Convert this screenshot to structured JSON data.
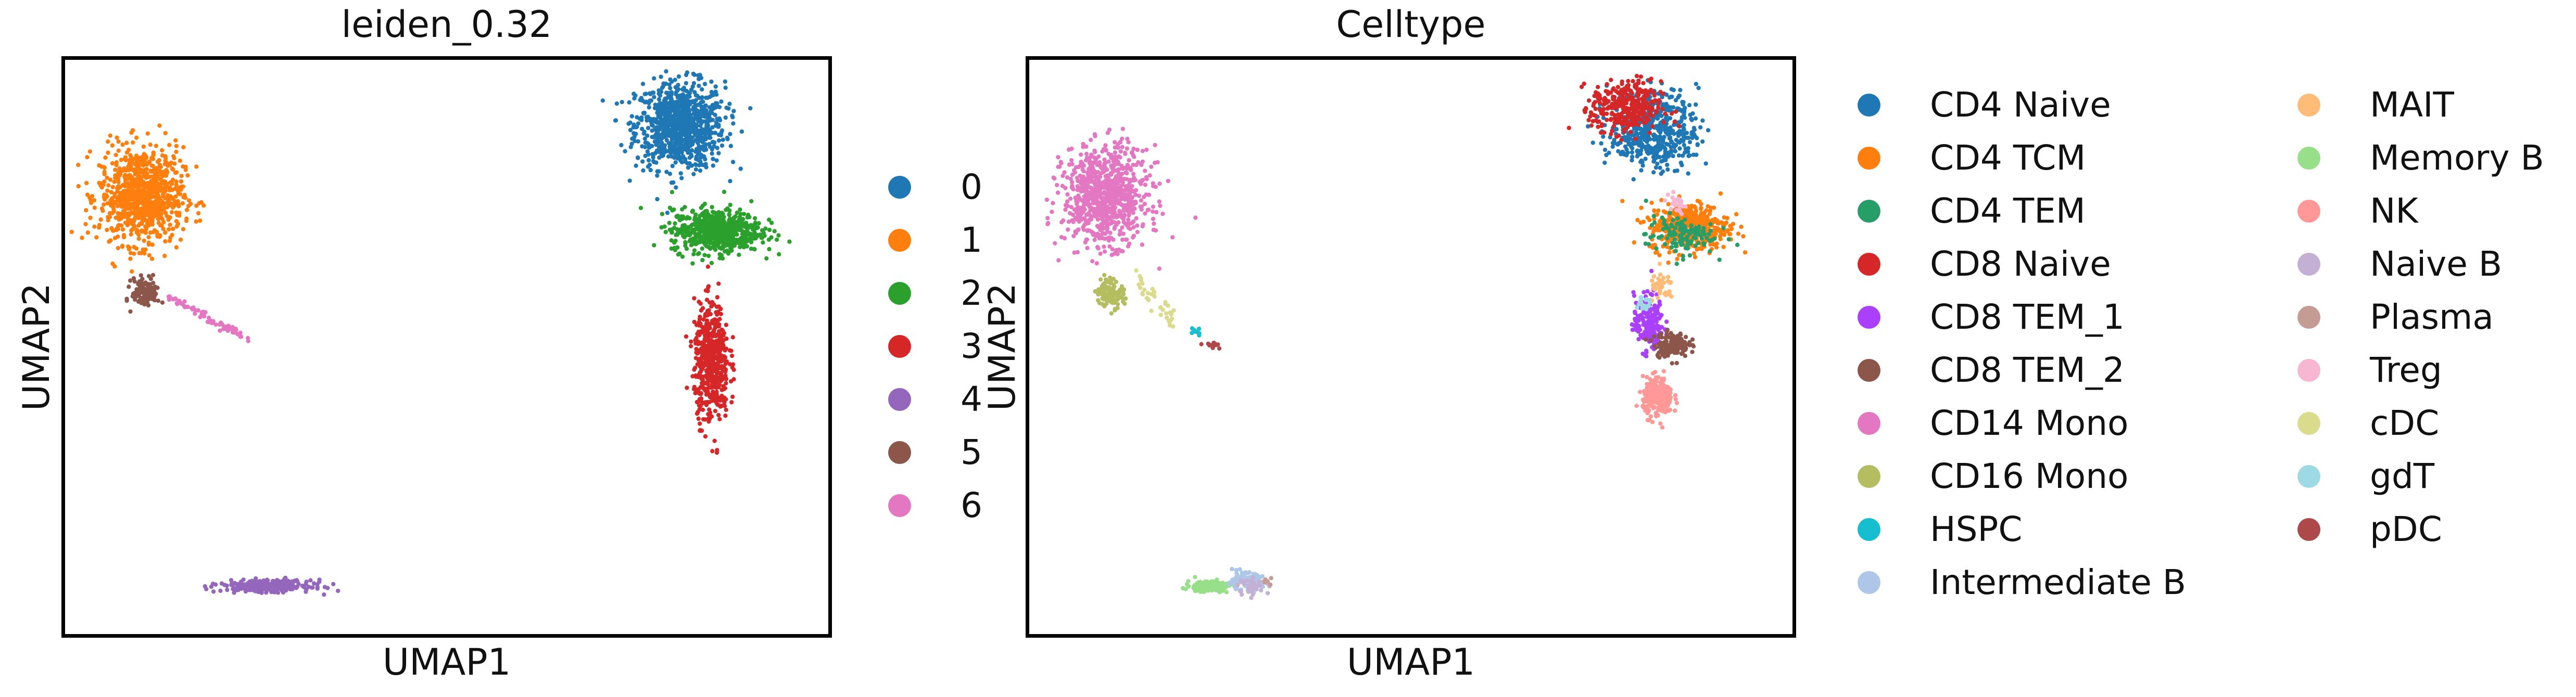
{
  "chart_data": [
    {
      "type": "scatter",
      "title": "leiden_0.32",
      "xlabel": "UMAP1",
      "ylabel": "UMAP2",
      "grid": false,
      "legend_placement": "right",
      "colors": {
        "0": "#1f77b4",
        "1": "#ff7f0e",
        "2": "#2ca02c",
        "3": "#d62728",
        "4": "#9467bd",
        "5": "#8c564b",
        "6": "#e377c2"
      },
      "legend": [
        "0",
        "1",
        "2",
        "3",
        "4",
        "5",
        "6"
      ],
      "clusters": [
        {
          "label": "0",
          "cx": 6.2,
          "cy": 9.0,
          "rx": 0.9,
          "ry": 0.9,
          "n": 900
        },
        {
          "label": "1",
          "cx": -5.8,
          "cy": 7.4,
          "rx": 0.85,
          "ry": 1.0,
          "n": 850
        },
        {
          "label": "2",
          "cx": 7.0,
          "cy": 6.6,
          "rx": 0.9,
          "ry": 0.45,
          "n": 650
        },
        {
          "label": "3",
          "cx": 6.9,
          "cy": 3.6,
          "rx": 0.35,
          "ry": 1.2,
          "n": 550
        },
        {
          "label": "4",
          "cx": -3.0,
          "cy": -1.5,
          "rx": 0.9,
          "ry": 0.12,
          "n": 300
        },
        {
          "label": "5",
          "cx": -5.7,
          "cy": 5.2,
          "rx": 0.28,
          "ry": 0.3,
          "n": 120
        },
        {
          "label": "6",
          "cx": -4.3,
          "cy": 4.7,
          "rx": 0.9,
          "ry": 0.05,
          "n": 70
        }
      ]
    },
    {
      "type": "scatter",
      "title": "Celltype",
      "xlabel": "UMAP1",
      "ylabel": "UMAP2",
      "grid": false,
      "legend_placement": "right",
      "colors": {
        "CD4 Naive": "#1f77b4",
        "CD4 TCM": "#ff7f0e",
        "CD4 TEM": "#279e68",
        "CD8 Naive": "#d62728",
        "CD8 TEM_1": "#aa40fc",
        "CD8 TEM_2": "#8c564b",
        "CD14 Mono": "#e377c2",
        "CD16 Mono": "#b5bd61",
        "HSPC": "#17becf",
        "Intermediate B": "#aec7e8",
        "MAIT": "#ffbb78",
        "Memory B": "#98df8a",
        "NK": "#ff9896",
        "Naive B": "#c5b0d5",
        "Plasma": "#c49c94",
        "Treg": "#f7b6d2",
        "cDC": "#dbdb8d",
        "gdT": "#9edae5",
        "pDC": "#ad494a"
      },
      "legend": [
        "CD4 Naive",
        "CD4 TCM",
        "CD4 TEM",
        "CD8 Naive",
        "CD8 TEM_1",
        "CD8 TEM_2",
        "CD14 Mono",
        "CD16 Mono",
        "HSPC",
        "Intermediate B",
        "MAIT",
        "Memory B",
        "NK",
        "Naive B",
        "Plasma",
        "Treg",
        "cDC",
        "gdT",
        "pDC"
      ],
      "clusters": [
        {
          "label": "CD4 Naive",
          "cx": 6.4,
          "cy": 8.9,
          "rx": 0.9,
          "ry": 0.8,
          "n": 500
        },
        {
          "label": "CD8 Naive",
          "cx": 5.8,
          "cy": 9.4,
          "rx": 0.7,
          "ry": 0.55,
          "n": 350
        },
        {
          "label": "CD4 TCM",
          "cx": 7.2,
          "cy": 6.7,
          "rx": 0.8,
          "ry": 0.5,
          "n": 450
        },
        {
          "label": "CD4 TEM",
          "cx": 7.0,
          "cy": 6.5,
          "rx": 0.7,
          "ry": 0.4,
          "n": 120
        },
        {
          "label": "CD8 TEM_1",
          "cx": 6.3,
          "cy": 4.5,
          "rx": 0.3,
          "ry": 0.6,
          "n": 200
        },
        {
          "label": "CD8 TEM_2",
          "cx": 6.8,
          "cy": 4.0,
          "rx": 0.35,
          "ry": 0.25,
          "n": 160
        },
        {
          "label": "NK",
          "cx": 6.5,
          "cy": 2.8,
          "rx": 0.3,
          "ry": 0.4,
          "n": 250
        },
        {
          "label": "MAIT",
          "cx": 6.6,
          "cy": 5.3,
          "rx": 0.25,
          "ry": 0.3,
          "n": 40
        },
        {
          "label": "Treg",
          "cx": 6.9,
          "cy": 7.2,
          "rx": 0.25,
          "ry": 0.2,
          "n": 25
        },
        {
          "label": "gdT",
          "cx": 6.2,
          "cy": 4.9,
          "rx": 0.2,
          "ry": 0.2,
          "n": 20
        },
        {
          "label": "CD14 Mono",
          "cx": -5.8,
          "cy": 7.4,
          "rx": 0.85,
          "ry": 1.0,
          "n": 850
        },
        {
          "label": "CD16 Mono",
          "cx": -5.7,
          "cy": 5.2,
          "rx": 0.28,
          "ry": 0.3,
          "n": 120
        },
        {
          "label": "cDC",
          "cx": -4.7,
          "cy": 5.1,
          "rx": 0.45,
          "ry": 0.12,
          "n": 40
        },
        {
          "label": "HSPC",
          "cx": -3.8,
          "cy": 4.3,
          "rx": 0.12,
          "ry": 0.12,
          "n": 8
        },
        {
          "label": "pDC",
          "cx": -3.4,
          "cy": 4.0,
          "rx": 0.2,
          "ry": 0.08,
          "n": 15
        },
        {
          "label": "Memory B",
          "cx": -3.5,
          "cy": -1.5,
          "rx": 0.45,
          "ry": 0.12,
          "n": 150
        },
        {
          "label": "Intermediate B",
          "cx": -2.7,
          "cy": -1.4,
          "rx": 0.35,
          "ry": 0.18,
          "n": 130
        },
        {
          "label": "Naive B",
          "cx": -2.5,
          "cy": -1.5,
          "rx": 0.3,
          "ry": 0.15,
          "n": 40
        },
        {
          "label": "Plasma",
          "cx": -2.2,
          "cy": -1.4,
          "rx": 0.1,
          "ry": 0.08,
          "n": 6
        }
      ]
    }
  ]
}
